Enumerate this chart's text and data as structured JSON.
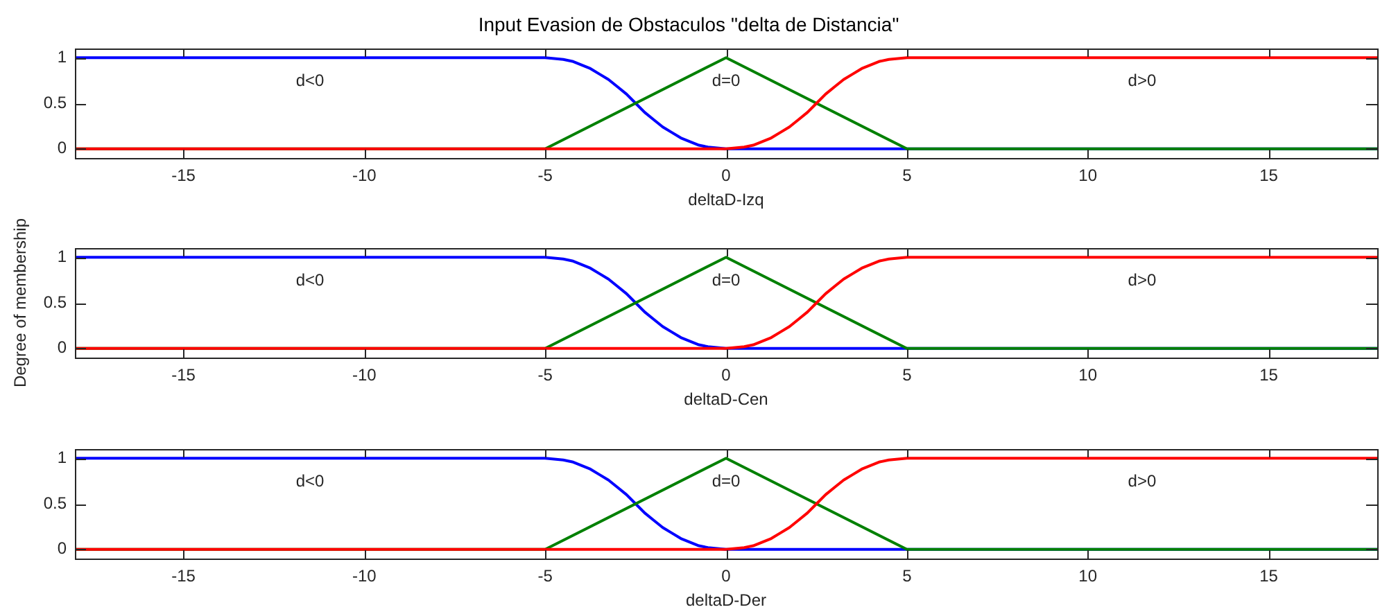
{
  "chart_data": [
    {
      "type": "line",
      "title": "Input Evasion de Obstaculos \"delta de Distancia\"",
      "xlabel": "deltaD-Izq",
      "xlim": [
        -18,
        18
      ],
      "xticks": [
        -15,
        -10,
        -5,
        0,
        5,
        10,
        15
      ],
      "ylim": [
        -0.1,
        1.1
      ],
      "yticks": [
        0,
        0.5,
        1
      ],
      "series": [
        {
          "name": "d<0",
          "color": "#0000ff",
          "x": [
            -18,
            -5,
            -4.75,
            -4.5,
            -4.25,
            -4,
            -3.75,
            -3.5,
            -3.25,
            -3,
            -2.75,
            -2.5,
            -2.25,
            -2,
            -1.75,
            -1.5,
            -1.25,
            -1,
            -0.75,
            -0.5,
            -0.25,
            0,
            18
          ],
          "values": [
            1,
            1,
            0.99,
            0.98,
            0.96,
            0.92,
            0.88,
            0.82,
            0.76,
            0.68,
            0.6,
            0.5,
            0.4,
            0.32,
            0.24,
            0.18,
            0.12,
            0.08,
            0.04,
            0.02,
            0.01,
            0,
            0
          ]
        },
        {
          "name": "d=0",
          "color": "#008000",
          "x": [
            -18,
            -5,
            0,
            5,
            18
          ],
          "values": [
            0,
            0,
            1,
            0,
            0
          ]
        },
        {
          "name": "d>0",
          "color": "#ff0000",
          "x": [
            -18,
            0,
            0.25,
            0.5,
            0.75,
            1,
            1.25,
            1.5,
            1.75,
            2,
            2.25,
            2.5,
            2.75,
            3,
            3.25,
            3.5,
            3.75,
            4,
            4.25,
            4.5,
            4.75,
            5,
            18
          ],
          "values": [
            0,
            0,
            0.01,
            0.02,
            0.04,
            0.08,
            0.12,
            0.18,
            0.24,
            0.32,
            0.4,
            0.5,
            0.6,
            0.68,
            0.76,
            0.82,
            0.88,
            0.92,
            0.96,
            0.98,
            0.99,
            1,
            1
          ]
        }
      ]
    },
    {
      "type": "line",
      "xlabel": "deltaD-Cen",
      "ylabel": "Degree of membership",
      "xlim": [
        -18,
        18
      ],
      "xticks": [
        -15,
        -10,
        -5,
        0,
        5,
        10,
        15
      ],
      "ylim": [
        -0.1,
        1.1
      ],
      "yticks": [
        0,
        0.5,
        1
      ],
      "series": [
        {
          "name": "d<0",
          "color": "#0000ff",
          "x": [
            -18,
            -5,
            -4.75,
            -4.5,
            -4.25,
            -4,
            -3.75,
            -3.5,
            -3.25,
            -3,
            -2.75,
            -2.5,
            -2.25,
            -2,
            -1.75,
            -1.5,
            -1.25,
            -1,
            -0.75,
            -0.5,
            -0.25,
            0,
            18
          ],
          "values": [
            1,
            1,
            0.99,
            0.98,
            0.96,
            0.92,
            0.88,
            0.82,
            0.76,
            0.68,
            0.6,
            0.5,
            0.4,
            0.32,
            0.24,
            0.18,
            0.12,
            0.08,
            0.04,
            0.02,
            0.01,
            0,
            0
          ]
        },
        {
          "name": "d=0",
          "color": "#008000",
          "x": [
            -18,
            -5,
            0,
            5,
            18
          ],
          "values": [
            0,
            0,
            1,
            0,
            0
          ]
        },
        {
          "name": "d>0",
          "color": "#ff0000",
          "x": [
            -18,
            0,
            0.25,
            0.5,
            0.75,
            1,
            1.25,
            1.5,
            1.75,
            2,
            2.25,
            2.5,
            2.75,
            3,
            3.25,
            3.5,
            3.75,
            4,
            4.25,
            4.5,
            4.75,
            5,
            18
          ],
          "values": [
            0,
            0,
            0.01,
            0.02,
            0.04,
            0.08,
            0.12,
            0.18,
            0.24,
            0.32,
            0.4,
            0.5,
            0.6,
            0.68,
            0.76,
            0.82,
            0.88,
            0.92,
            0.96,
            0.98,
            0.99,
            1,
            1
          ]
        }
      ]
    },
    {
      "type": "line",
      "xlabel": "deltaD-Der",
      "xlim": [
        -18,
        18
      ],
      "xticks": [
        -15,
        -10,
        -5,
        0,
        5,
        10,
        15
      ],
      "ylim": [
        -0.1,
        1.1
      ],
      "yticks": [
        0,
        0.5,
        1
      ],
      "series": [
        {
          "name": "d<0",
          "color": "#0000ff",
          "x": [
            -18,
            -5,
            -4.75,
            -4.5,
            -4.25,
            -4,
            -3.75,
            -3.5,
            -3.25,
            -3,
            -2.75,
            -2.5,
            -2.25,
            -2,
            -1.75,
            -1.5,
            -1.25,
            -1,
            -0.75,
            -0.5,
            -0.25,
            0,
            18
          ],
          "values": [
            1,
            1,
            0.99,
            0.98,
            0.96,
            0.92,
            0.88,
            0.82,
            0.76,
            0.68,
            0.6,
            0.5,
            0.4,
            0.32,
            0.24,
            0.18,
            0.12,
            0.08,
            0.04,
            0.02,
            0.01,
            0,
            0
          ]
        },
        {
          "name": "d=0",
          "color": "#008000",
          "x": [
            -18,
            -5,
            0,
            5,
            18
          ],
          "values": [
            0,
            0,
            1,
            0,
            0
          ]
        },
        {
          "name": "d>0",
          "color": "#ff0000",
          "x": [
            -18,
            0,
            0.25,
            0.5,
            0.75,
            1,
            1.25,
            1.5,
            1.75,
            2,
            2.25,
            2.5,
            2.75,
            3,
            3.25,
            3.5,
            3.75,
            4,
            4.25,
            4.5,
            4.75,
            5,
            18
          ],
          "values": [
            0,
            0,
            0.01,
            0.02,
            0.04,
            0.08,
            0.12,
            0.18,
            0.24,
            0.32,
            0.4,
            0.5,
            0.6,
            0.68,
            0.76,
            0.82,
            0.88,
            0.92,
            0.96,
            0.98,
            0.99,
            1,
            1
          ]
        }
      ]
    }
  ]
}
